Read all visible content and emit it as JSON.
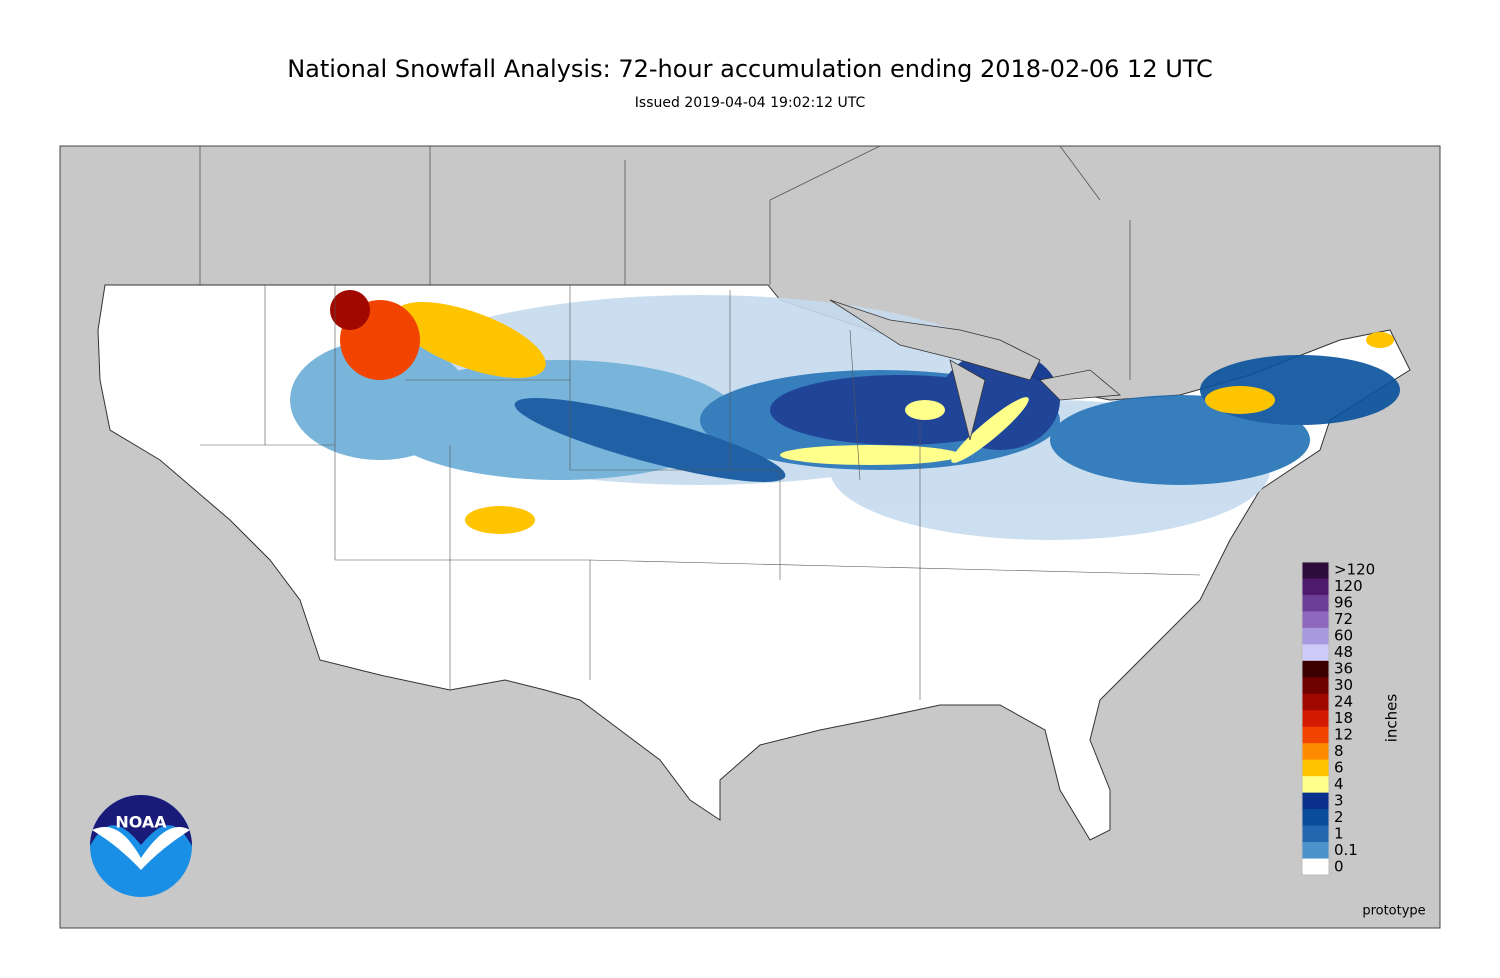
{
  "header": {
    "title": "National Snowfall Analysis: 72-hour accumulation ending 2018-02-06 12 UTC",
    "subtitle": "Issued 2019-04-04 19:02:12 UTC"
  },
  "legend": {
    "title": "inches",
    "levels": [
      {
        "label": ">120",
        "color": "#2d0b3a"
      },
      {
        "value": 120,
        "color": "#4e1a6e"
      },
      {
        "value": 96,
        "color": "#6c3e98"
      },
      {
        "value": 72,
        "color": "#8e68bd"
      },
      {
        "value": 60,
        "color": "#a89ade"
      },
      {
        "value": 48,
        "color": "#cfcbf8"
      },
      {
        "value": 36,
        "color": "#3a0000"
      },
      {
        "value": 30,
        "color": "#6e0000"
      },
      {
        "value": 24,
        "color": "#a00800"
      },
      {
        "value": 18,
        "color": "#d21a00"
      },
      {
        "value": 12,
        "color": "#f04400"
      },
      {
        "value": 8,
        "color": "#ff8c00"
      },
      {
        "value": 6,
        "color": "#ffc400"
      },
      {
        "value": 4,
        "color": "#ffff8c"
      },
      {
        "value": 3,
        "color": "#08308c"
      },
      {
        "value": 2,
        "color": "#0a4c9c"
      },
      {
        "value": 1,
        "color": "#2268b0"
      },
      {
        "value": 0.1,
        "color": "#4a93cc"
      },
      {
        "value": 0,
        "color": "#ffffff"
      }
    ]
  },
  "logo": {
    "text": "NOAA"
  },
  "footer": {
    "note": "prototype"
  }
}
